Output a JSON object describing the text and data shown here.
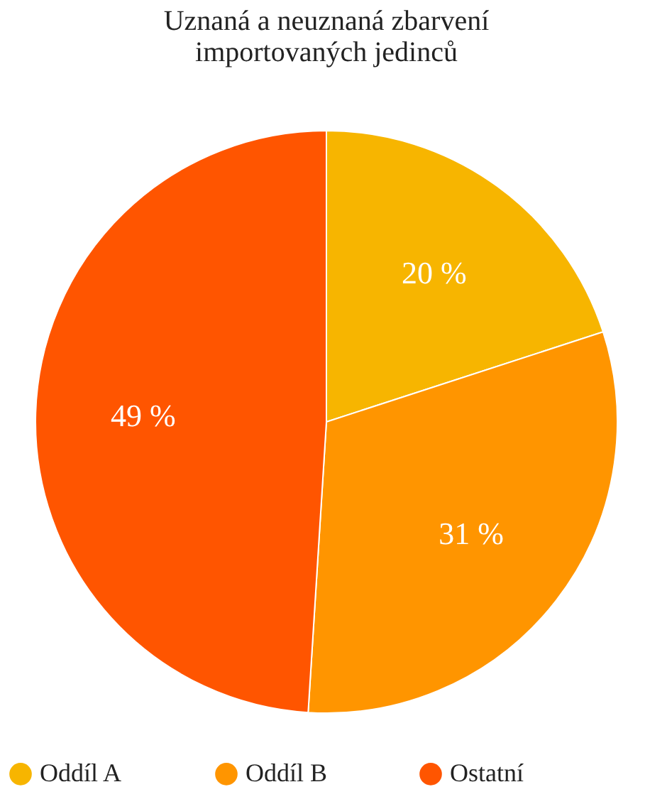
{
  "chart_data": {
    "type": "pie",
    "title": "Uznaná a neuznaná zbarvení\nimportovaných jedinců",
    "categories": [
      "Oddíl A",
      "Oddíl B",
      "Ostatní"
    ],
    "values": [
      20,
      31,
      49
    ],
    "colors": [
      "#f7b500",
      "#ff9500",
      "#ff5500"
    ],
    "value_labels": [
      "20 %",
      "31 %",
      "49 %"
    ],
    "legend": "bottom"
  }
}
